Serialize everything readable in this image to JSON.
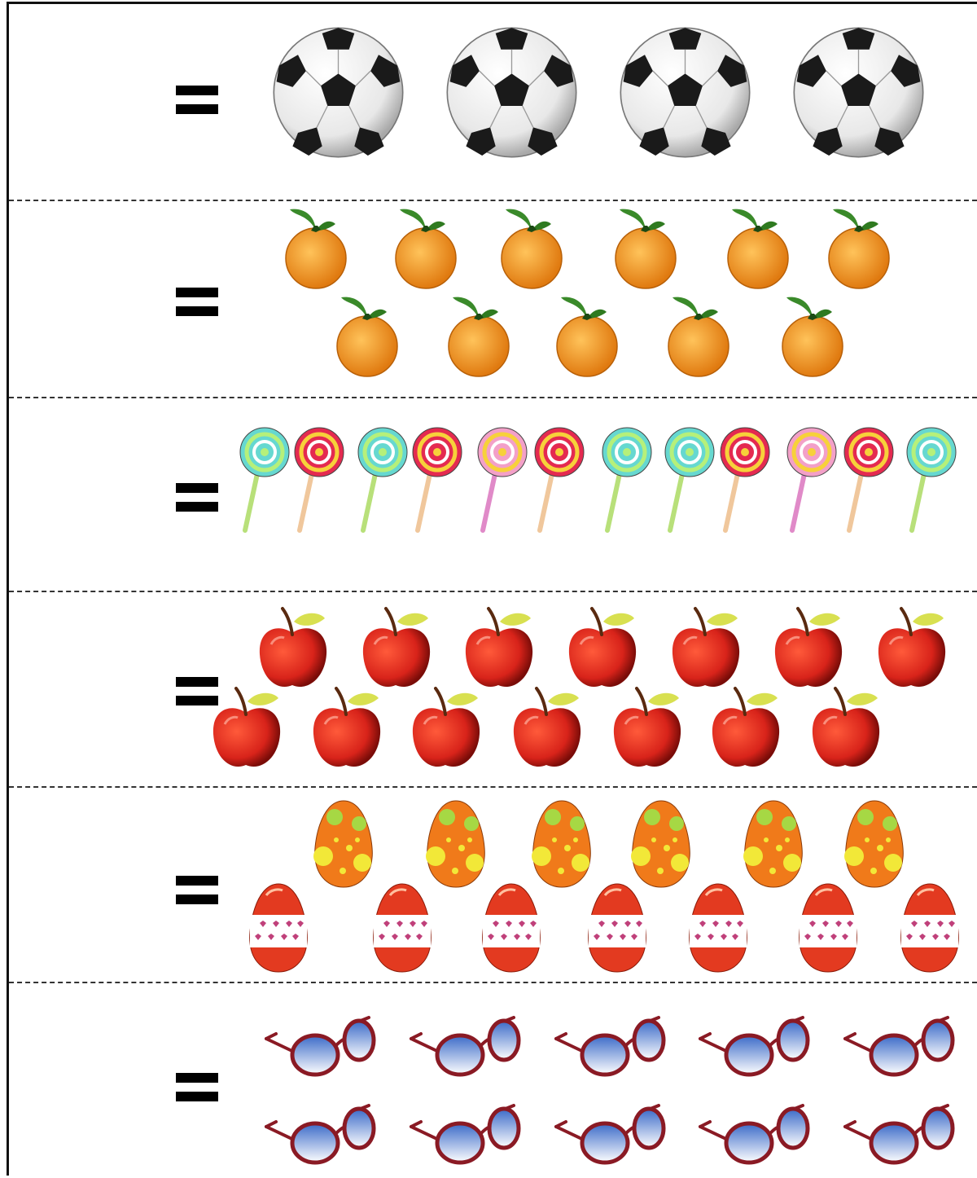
{
  "worksheet": {
    "rows": [
      {
        "item": "soccer-ball",
        "count": 4,
        "sign": "="
      },
      {
        "item": "orange",
        "count": 11,
        "sign": "="
      },
      {
        "item": "lollipop",
        "count": 12,
        "sign": "="
      },
      {
        "item": "apple",
        "count": 14,
        "sign": "="
      },
      {
        "item": "easter-egg",
        "count": 13,
        "sign": "="
      },
      {
        "item": "sunglasses",
        "count": 10,
        "sign": "="
      }
    ]
  },
  "colors": {
    "line": "#111111",
    "orange": "#f39a22",
    "apple": "#d8231a",
    "leaf": "#3a8a2a",
    "egg_orange": "#f07a1a",
    "egg_red": "#e33a20",
    "lens_blue": "#8ab6e8",
    "frame_red": "#8a1a24"
  }
}
